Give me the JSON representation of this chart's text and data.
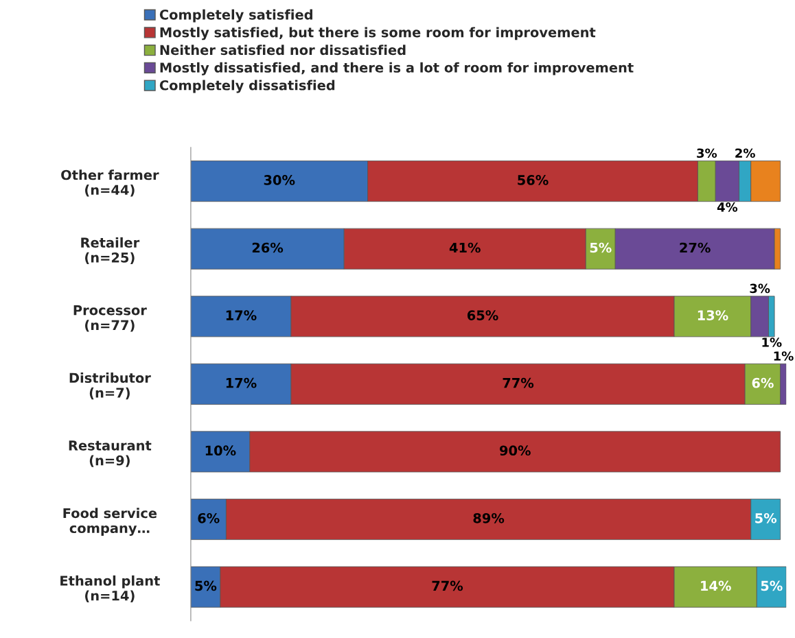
{
  "chart_data": {
    "type": "bar",
    "orientation": "horizontal",
    "stacked": true,
    "legend": "top left",
    "tick_labels": "y",
    "xlim": [
      0,
      101
    ],
    "categories": [
      "Other farmer\n(n=44)",
      "Retailer\n(n=25)",
      "Processor\n(n=77)",
      "Distributor\n(n=7)",
      "Restaurant\n(n=9)",
      "Food service\ncompany…",
      "Ethanol plant\n(n=14)"
    ],
    "series": [
      {
        "name": "Completely satisfied",
        "color": "#3a70b8",
        "values": [
          30,
          26,
          17,
          17,
          10,
          6,
          5
        ],
        "value_labels": [
          "30%",
          "26%",
          "17%",
          "17%",
          "10%",
          "6%",
          "5%"
        ]
      },
      {
        "name": "Mostly satisfied, but there is some room for improvement",
        "color": "#b83535",
        "values": [
          56,
          41,
          65,
          77,
          90,
          89,
          77
        ],
        "value_labels": [
          "56%",
          "41%",
          "65%",
          "77%",
          "90%",
          "89%",
          "77%"
        ]
      },
      {
        "name": "Neither satisfied nor dissatisfied",
        "color": "#8cb03e",
        "values": [
          3,
          5,
          13,
          6,
          null,
          null,
          14
        ],
        "value_labels": [
          "3%",
          "5%",
          "13%",
          "6%",
          null,
          null,
          "14%"
        ]
      },
      {
        "name": "Mostly dissatisfied, and there is a lot of room for improvement",
        "color": "#6a4a96",
        "values": [
          4,
          27,
          3,
          1,
          null,
          null,
          null
        ],
        "value_labels": [
          "4%",
          "27%",
          "3%",
          "1%",
          null,
          null,
          null
        ]
      },
      {
        "name": "Completely dissatisfied",
        "color": "#30a6c4",
        "values": [
          2,
          null,
          1,
          null,
          null,
          5,
          5
        ],
        "value_labels": [
          "2%",
          null,
          "1%",
          null,
          null,
          "5%",
          "5%"
        ]
      },
      {
        "color": "#e8821e",
        "values": [
          5,
          1,
          null,
          null,
          null,
          null,
          null
        ],
        "value_labels": [
          null,
          null,
          null,
          null,
          null,
          null,
          null
        ]
      }
    ]
  }
}
